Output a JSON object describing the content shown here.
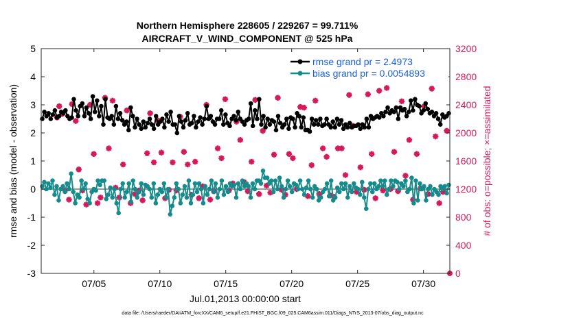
{
  "chart_data": {
    "type": "line",
    "title": "Northern Hemisphere 228605 / 229267 = 99.711%",
    "subtitle": "AIRCRAFT_V_WIND_COMPONENT @ 525 hPa",
    "xlabel": "Jul.01,2013 00:00:00 start",
    "ylabel": "rmse and bias (model - observation)",
    "y2label": "# of obs: o=possible; ×=assimilated",
    "xlim": [
      1,
      32
    ],
    "ylim": [
      -3,
      5
    ],
    "y2lim": [
      0,
      3200
    ],
    "xticks": [
      5,
      10,
      15,
      20,
      25,
      30
    ],
    "xtick_labels": [
      "07/05",
      "07/10",
      "07/15",
      "07/20",
      "07/25",
      "07/30"
    ],
    "yticks": [
      -3,
      -2,
      -1,
      0,
      1,
      2,
      3,
      4,
      5
    ],
    "y2ticks": [
      0,
      400,
      800,
      1200,
      1600,
      2000,
      2400,
      2800,
      3200
    ],
    "colors": {
      "rmse": "#000000",
      "bias": "#158b8b",
      "obs": "#d6195a",
      "zero": "#9a9a9a"
    },
    "series": [
      {
        "name": "rmse grand pr = 2.4973",
        "axis": "left",
        "marker": "circle",
        "values": [
          2.5,
          2.75,
          2.6,
          2.7,
          2.5,
          2.65,
          2.8,
          2.55,
          2.6,
          2.75,
          2.7,
          2.8,
          2.6,
          2.5,
          2.55,
          3.2,
          2.8,
          2.6,
          2.95,
          3.05,
          2.6,
          2.9,
          2.7,
          2.5,
          3.3,
          2.75,
          3.15,
          2.6,
          2.95,
          2.3,
          3.2,
          2.55,
          2.5,
          2.6,
          2.3,
          2.95,
          2.5,
          2.7,
          2.45,
          2.3,
          2.4,
          2.1,
          2.9,
          2.6,
          2.2,
          2.5,
          2.3,
          2.15,
          2.4,
          2.2,
          2.35,
          2.5,
          2.3,
          2.15,
          2.6,
          2.3,
          2.4,
          2.5,
          2.2,
          2.65,
          2.4,
          2.75,
          2.3,
          2.3,
          2.0,
          2.6,
          2.4,
          2.2,
          2.45,
          2.7,
          2.3,
          2.35,
          2.6,
          2.2,
          2.4,
          2.55,
          2.3,
          2.5,
          2.95,
          2.5,
          2.6,
          2.4,
          2.3,
          2.5,
          2.5,
          2.8,
          2.3,
          2.65,
          2.35,
          2.25,
          2.5,
          2.6,
          2.45,
          2.75,
          2.5,
          2.4,
          2.3,
          2.45,
          2.5,
          3.05,
          2.25,
          2.8,
          2.5,
          3.2,
          2.3,
          2.6,
          2.2,
          2.5,
          2.3,
          2.45,
          2.4,
          2.1,
          2.6,
          2.35,
          2.2,
          2.3,
          2.5,
          2.15,
          2.55,
          2.5,
          2.2,
          2.7,
          2.6,
          2.2,
          2.55,
          2.1,
          2.1,
          2.05,
          2.5,
          2.3,
          2.45,
          2.3,
          2.5,
          2.25,
          2.3,
          2.5,
          2.3,
          2.2,
          2.4,
          2.2,
          2.5,
          2.3,
          2.45,
          2.15,
          2.3,
          2.2,
          2.35,
          2.2,
          2.25,
          2.25,
          2.3,
          2.15,
          2.3,
          2.2,
          2.5,
          2.2,
          2.6,
          2.5,
          2.55,
          2.6,
          2.55,
          2.7,
          2.6,
          2.75,
          2.9,
          2.7,
          2.8,
          2.75,
          2.9,
          2.5,
          2.9,
          2.8,
          2.85,
          2.6,
          2.75,
          3.15,
          2.8,
          3.2,
          3.0,
          2.95,
          2.7,
          2.8,
          3.05,
          2.85,
          2.7,
          2.75,
          2.6,
          2.7,
          2.5,
          2.3,
          2.65,
          2.55,
          2.6,
          2.7
        ]
      },
      {
        "name": "bias grand pr = 0.0054893",
        "axis": "left",
        "marker": "circle",
        "values": [
          0.1,
          0.25,
          0.0,
          0.2,
          0.05,
          0.3,
          -0.2,
          0.1,
          -0.4,
          0.0,
          0.1,
          -0.1,
          0.2,
          0.0,
          0.55,
          -0.1,
          -0.5,
          -0.2,
          -0.3,
          0.3,
          0.0,
          0.2,
          -0.35,
          -0.5,
          -0.1,
          0.0,
          -0.05,
          0.3,
          0.15,
          0.3,
          0.3,
          -0.35,
          -0.2,
          0.05,
          -0.3,
          0.0,
          -0.5,
          -0.85,
          0.0,
          0.2,
          -0.3,
          -0.1,
          0.2,
          -0.45,
          0.3,
          0.0,
          -0.3,
          -0.1,
          0.2,
          -0.2,
          0.15,
          0.1,
          0.0,
          -0.3,
          0.2,
          -0.5,
          -0.2,
          0.0,
          -0.1,
          0.2,
          -0.3,
          0.0,
          -0.9,
          -0.6,
          -0.3,
          0.2,
          0.0,
          -0.5,
          -0.2,
          0.1,
          -0.3,
          0.3,
          -0.5,
          -0.2,
          0.2,
          -0.1,
          0.2,
          0.0,
          -0.5,
          0.1,
          -0.2,
          0.0,
          0.3,
          -0.1,
          0.2,
          -0.3,
          0.0,
          0.3,
          -0.2,
          0.1,
          -0.1,
          0.2,
          0.1,
          0.15,
          -0.3,
          0.2,
          0.0,
          0.3,
          0.1,
          0.2,
          0.1,
          -0.3,
          0.2,
          0.0,
          0.3,
          0.3,
          0.2,
          0.65,
          0.4,
          0.4,
          0.2,
          0.3,
          -0.1,
          0.3,
          0.0,
          0.4,
          0.1,
          -0.3,
          0.0,
          0.3,
          0.1,
          -0.1,
          0.2,
          0.15,
          0.0,
          0.3,
          0.0,
          -0.2,
          0.05,
          0.3,
          0.0,
          -0.3,
          0.1,
          0.0,
          -0.4,
          -0.3,
          -0.1,
          0.0,
          0.2,
          -0.25,
          0.3,
          -0.4,
          -0.3,
          0.05,
          -0.1,
          0.2,
          0.0,
          0.2,
          -0.3,
          0.1,
          -0.1,
          0.2,
          0.05,
          0.0,
          -0.2,
          0.25,
          -0.3,
          -0.7,
          0.0,
          0.2,
          -0.1,
          0.2,
          0.0,
          0.1,
          0.3,
          0.1,
          0.3,
          -0.2,
          0.0,
          0.3,
          0.1,
          0.3,
          0.25,
          0.0,
          0.2,
          0.1,
          0.3,
          -0.1,
          0.0,
          0.4,
          -0.5,
          0.3,
          -0.4,
          0.2,
          0.0,
          0.1,
          -0.4,
          0.0,
          0.1,
          -0.2,
          0.0,
          -0.1,
          -0.2,
          0.1,
          0.0,
          0.1,
          -0.15,
          0.15
        ]
      },
      {
        "name": "observations",
        "axis": "right",
        "marker": "star",
        "values": [
          2220,
          2380,
          2270,
          1180,
          1050,
          2410,
          2170,
          1480,
          1180,
          980,
          2400,
          1700,
          1000,
          1080,
          2500,
          1780,
          2460,
          1220,
          1080,
          1550,
          2320,
          1000,
          1130,
          1180,
          1040,
          1710,
          2280,
          1580,
          2180,
          1720,
          1070,
          1190,
          1580,
          1180,
          2230,
          1730,
          1550,
          1120,
          1590,
          1070,
          1240,
          2400,
          1050,
          1170,
          1780,
          1640,
          2480,
          1180,
          1280,
          2160,
          1900,
          1300,
          1170,
          1590,
          2470,
          1130,
          2030,
          1250,
          1150,
          1690,
          2500,
          1190,
          1120,
          1700,
          1640,
          1200,
          2370,
          2360,
          1100,
          1540,
          2460,
          1130,
          1780,
          1660,
          1110,
          1090,
          1780,
          1780,
          1400,
          2540,
          2100,
          1160,
          1510,
          1190,
          2550,
          1700,
          1070,
          2600,
          1180,
          2640,
          1200,
          1730,
          1170,
          2450,
          1390,
          1900,
          1050,
          1700,
          1210,
          2380,
          1130,
          2630,
          1950,
          1000,
          1160,
          2030
        ]
      }
    ],
    "obs_x": [
      1.1,
      1.25,
      1.45,
      1.65,
      1.9,
      2.1,
      2.35,
      2.55,
      2.8,
      3.05,
      3.3,
      3.55,
      3.8,
      4.0,
      4.3,
      4.55,
      4.8,
      5.0,
      5.25,
      5.5,
      5.75,
      6.0,
      6.3,
      6.55,
      6.8,
      7.1,
      7.3,
      7.55,
      7.8,
      8.05,
      8.3,
      8.55,
      8.8,
      9.05,
      9.3,
      9.55,
      9.8,
      10.05,
      10.3,
      10.55,
      10.8,
      11.05,
      11.3,
      11.55,
      11.8,
      12.05,
      12.3,
      12.55,
      12.8,
      13.05,
      13.3,
      13.55,
      13.8,
      14.05,
      14.3,
      14.55,
      14.8,
      15.05,
      15.3,
      15.55,
      15.8,
      16.05,
      16.3,
      16.55,
      16.8,
      17.05,
      17.3,
      17.55,
      17.8,
      18.05,
      18.3,
      18.55,
      18.8,
      19.05,
      19.3,
      19.55,
      19.8,
      20.05,
      20.3,
      20.55,
      20.8,
      21.05,
      21.3,
      21.55,
      21.8,
      22.05,
      22.3,
      22.55,
      22.8,
      23.05,
      23.3,
      23.55,
      23.8,
      24.05,
      24.3,
      24.55,
      24.8,
      25.05,
      25.3,
      25.55,
      25.8,
      26.05,
      26.3,
      26.55,
      26.8,
      27.05
    ],
    "legend": {
      "location": "top-right",
      "entries": [
        "rmse grand pr = 2.4973",
        "bias grand pr = 0.0054893"
      ]
    }
  },
  "footer": "data file: /Users/raeder/DAI/ATM_forcXX/CAM6_setup/f.e21.FHIST_BGC.f09_025.CAM6assim.011/Diags_NTrS_2013-07/obs_diag_output.nc"
}
